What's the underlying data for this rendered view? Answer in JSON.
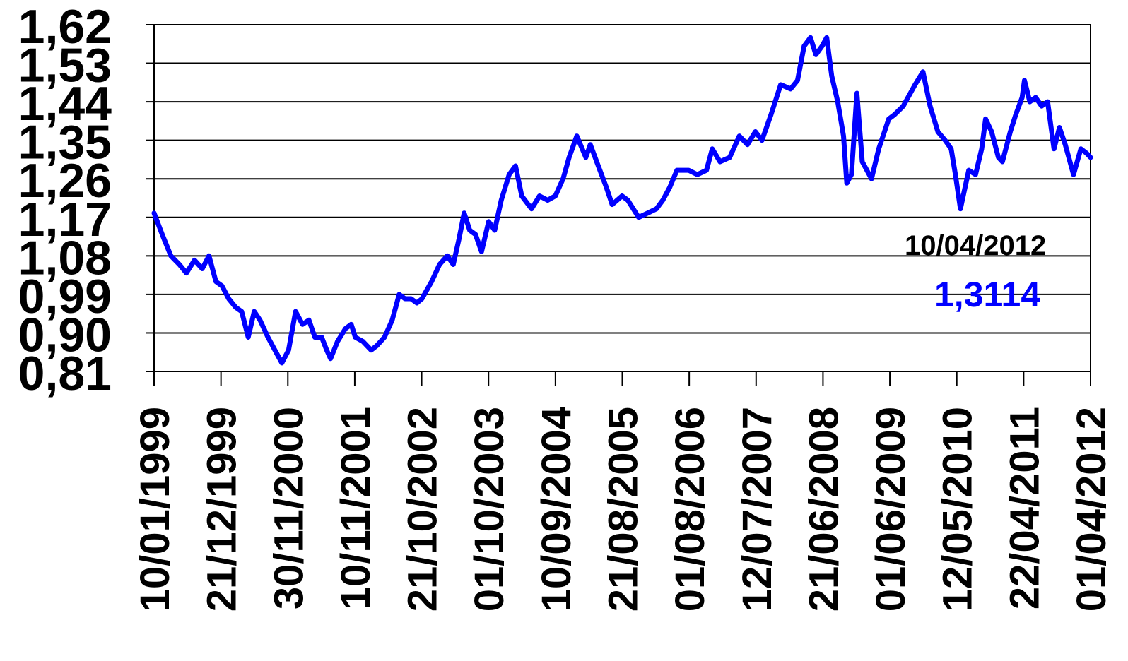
{
  "chart_data": {
    "type": "line",
    "title": "",
    "xlabel": "",
    "ylabel": "",
    "grid": true,
    "legend": "none",
    "y_ticks": [
      "1,62",
      "1,53",
      "1,44",
      "1,35",
      "1,26",
      "1,17",
      "1,08",
      "0,99",
      "0,90",
      "0,81"
    ],
    "y_tick_values": [
      1.62,
      1.53,
      1.44,
      1.35,
      1.26,
      1.17,
      1.08,
      0.99,
      0.9,
      0.81
    ],
    "ylim": [
      0.81,
      1.62
    ],
    "x_ticks": [
      "10/01/1999",
      "21/12/1999",
      "30/11/2000",
      "10/11/2001",
      "21/10/2002",
      "01/10/2003",
      "10/09/2004",
      "21/08/2005",
      "01/08/2006",
      "12/07/2007",
      "21/06/2008",
      "01/06/2009",
      "12/05/2010",
      "22/04/2011",
      "01/04/2012"
    ],
    "xlim": [
      "1999-01-04",
      "2012-04-10"
    ],
    "series": [
      {
        "color": "#0000ff",
        "points": [
          [
            "1999-01-04",
            1.18
          ],
          [
            "1999-02-15",
            1.13
          ],
          [
            "1999-04-01",
            1.08
          ],
          [
            "1999-05-15",
            1.06
          ],
          [
            "1999-06-20",
            1.04
          ],
          [
            "1999-08-01",
            1.07
          ],
          [
            "1999-09-10",
            1.05
          ],
          [
            "1999-10-15",
            1.08
          ],
          [
            "1999-11-20",
            1.02
          ],
          [
            "1999-12-21",
            1.01
          ],
          [
            "2000-01-25",
            0.98
          ],
          [
            "2000-03-01",
            0.96
          ],
          [
            "2000-04-01",
            0.95
          ],
          [
            "2000-05-05",
            0.89
          ],
          [
            "2000-06-05",
            0.95
          ],
          [
            "2000-07-05",
            0.93
          ],
          [
            "2000-08-15",
            0.89
          ],
          [
            "2000-09-20",
            0.86
          ],
          [
            "2000-10-26",
            0.83
          ],
          [
            "2000-11-30",
            0.86
          ],
          [
            "2001-01-05",
            0.95
          ],
          [
            "2001-02-10",
            0.92
          ],
          [
            "2001-03-15",
            0.93
          ],
          [
            "2001-04-15",
            0.89
          ],
          [
            "2001-05-20",
            0.89
          ],
          [
            "2001-06-15",
            0.86
          ],
          [
            "2001-07-05",
            0.84
          ],
          [
            "2001-08-10",
            0.88
          ],
          [
            "2001-09-20",
            0.91
          ],
          [
            "2001-10-20",
            0.92
          ],
          [
            "2001-11-10",
            0.89
          ],
          [
            "2001-12-20",
            0.88
          ],
          [
            "2002-01-31",
            0.86
          ],
          [
            "2002-03-01",
            0.87
          ],
          [
            "2002-04-10",
            0.89
          ],
          [
            "2002-05-20",
            0.93
          ],
          [
            "2002-06-25",
            0.99
          ],
          [
            "2002-07-25",
            0.98
          ],
          [
            "2002-08-25",
            0.98
          ],
          [
            "2002-09-25",
            0.97
          ],
          [
            "2002-10-21",
            0.98
          ],
          [
            "2002-12-10",
            1.02
          ],
          [
            "2003-01-20",
            1.06
          ],
          [
            "2003-03-01",
            1.08
          ],
          [
            "2003-04-01",
            1.06
          ],
          [
            "2003-05-01",
            1.12
          ],
          [
            "2003-05-27",
            1.18
          ],
          [
            "2003-06-25",
            1.14
          ],
          [
            "2003-07-25",
            1.13
          ],
          [
            "2003-08-25",
            1.09
          ],
          [
            "2003-10-01",
            1.16
          ],
          [
            "2003-11-01",
            1.14
          ],
          [
            "2003-12-05",
            1.21
          ],
          [
            "2004-01-15",
            1.27
          ],
          [
            "2004-02-17",
            1.29
          ],
          [
            "2004-03-20",
            1.22
          ],
          [
            "2004-05-10",
            1.19
          ],
          [
            "2004-06-20",
            1.22
          ],
          [
            "2004-08-01",
            1.21
          ],
          [
            "2004-09-10",
            1.22
          ],
          [
            "2004-10-20",
            1.26
          ],
          [
            "2004-11-20",
            1.31
          ],
          [
            "2004-12-30",
            1.36
          ],
          [
            "2005-02-15",
            1.31
          ],
          [
            "2005-03-10",
            1.34
          ],
          [
            "2005-04-20",
            1.29
          ],
          [
            "2005-06-01",
            1.24
          ],
          [
            "2005-07-01",
            1.2
          ],
          [
            "2005-08-21",
            1.22
          ],
          [
            "2005-09-20",
            1.21
          ],
          [
            "2005-11-15",
            1.17
          ],
          [
            "2006-01-01",
            1.18
          ],
          [
            "2006-02-15",
            1.19
          ],
          [
            "2006-03-20",
            1.21
          ],
          [
            "2006-04-25",
            1.24
          ],
          [
            "2006-06-01",
            1.28
          ],
          [
            "2006-08-01",
            1.28
          ],
          [
            "2006-09-15",
            1.27
          ],
          [
            "2006-11-01",
            1.28
          ],
          [
            "2006-12-01",
            1.33
          ],
          [
            "2007-01-10",
            1.3
          ],
          [
            "2007-03-01",
            1.31
          ],
          [
            "2007-04-20",
            1.36
          ],
          [
            "2007-06-01",
            1.34
          ],
          [
            "2007-07-12",
            1.37
          ],
          [
            "2007-08-15",
            1.35
          ],
          [
            "2007-10-01",
            1.41
          ],
          [
            "2007-11-20",
            1.48
          ],
          [
            "2008-01-10",
            1.47
          ],
          [
            "2008-02-15",
            1.49
          ],
          [
            "2008-03-20",
            1.57
          ],
          [
            "2008-04-22",
            1.59
          ],
          [
            "2008-05-20",
            1.55
          ],
          [
            "2008-06-21",
            1.57
          ],
          [
            "2008-07-15",
            1.59
          ],
          [
            "2008-08-10",
            1.5
          ],
          [
            "2008-09-10",
            1.44
          ],
          [
            "2008-10-10",
            1.36
          ],
          [
            "2008-10-27",
            1.25
          ],
          [
            "2008-11-20",
            1.27
          ],
          [
            "2008-12-18",
            1.46
          ],
          [
            "2009-01-15",
            1.3
          ],
          [
            "2009-03-04",
            1.26
          ],
          [
            "2009-04-10",
            1.33
          ],
          [
            "2009-06-01",
            1.4
          ],
          [
            "2009-07-01",
            1.41
          ],
          [
            "2009-08-15",
            1.43
          ],
          [
            "2009-10-15",
            1.48
          ],
          [
            "2009-11-25",
            1.51
          ],
          [
            "2010-01-01",
            1.43
          ],
          [
            "2010-02-10",
            1.37
          ],
          [
            "2010-03-20",
            1.35
          ],
          [
            "2010-04-20",
            1.33
          ],
          [
            "2010-05-12",
            1.27
          ],
          [
            "2010-06-07",
            1.19
          ],
          [
            "2010-07-20",
            1.28
          ],
          [
            "2010-08-24",
            1.27
          ],
          [
            "2010-09-25",
            1.33
          ],
          [
            "2010-10-15",
            1.4
          ],
          [
            "2010-11-15",
            1.37
          ],
          [
            "2010-12-20",
            1.31
          ],
          [
            "2011-01-10",
            1.3
          ],
          [
            "2011-02-20",
            1.37
          ],
          [
            "2011-03-20",
            1.41
          ],
          [
            "2011-04-22",
            1.45
          ],
          [
            "2011-05-04",
            1.49
          ],
          [
            "2011-06-01",
            1.44
          ],
          [
            "2011-07-01",
            1.45
          ],
          [
            "2011-08-01",
            1.43
          ],
          [
            "2011-09-01",
            1.44
          ],
          [
            "2011-10-04",
            1.33
          ],
          [
            "2011-11-01",
            1.38
          ],
          [
            "2011-12-01",
            1.34
          ],
          [
            "2012-01-13",
            1.27
          ],
          [
            "2012-02-20",
            1.33
          ],
          [
            "2012-03-20",
            1.32
          ],
          [
            "2012-04-10",
            1.31
          ]
        ]
      }
    ]
  },
  "annotation": {
    "date": "10/04/2012",
    "value": "1,3114",
    "value_color": "#0000ff"
  }
}
